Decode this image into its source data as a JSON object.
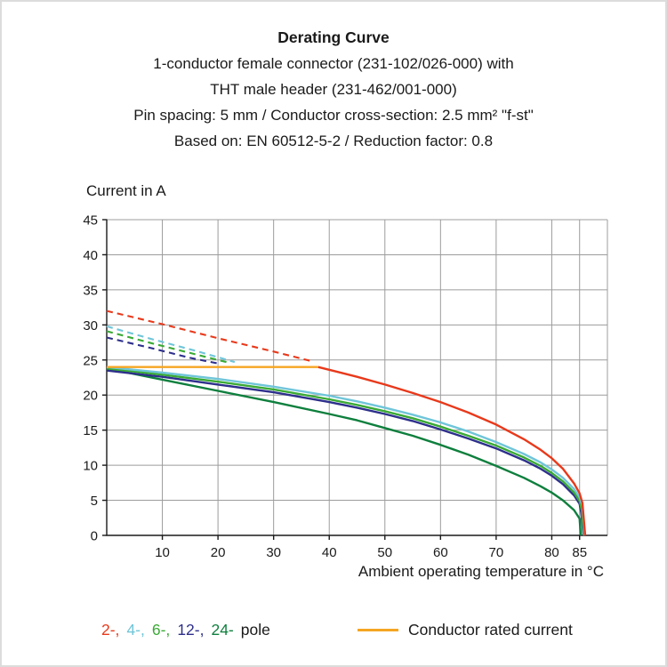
{
  "header": {
    "title": "Derating Curve",
    "subtitles": [
      "1-conductor female connector (231-102/026-000) with",
      "THT male header (231-462/001-000)",
      "Pin spacing: 5 mm / Conductor cross-section: 2.5 mm² \"f-st\"",
      "Based on: EN 60512-5-2 / Reduction factor: 0.8"
    ]
  },
  "chart_data": {
    "type": "line",
    "title": "Derating Curve",
    "xlabel": "Ambient operating temperature in °C",
    "ylabel": "Current in A",
    "xlim": [
      0,
      90
    ],
    "ylim": [
      0,
      45
    ],
    "x_ticks": [
      10,
      20,
      30,
      40,
      50,
      60,
      70,
      80,
      85
    ],
    "y_ticks": [
      0,
      5,
      10,
      15,
      20,
      25,
      30,
      35,
      40,
      45
    ],
    "grid": true,
    "grid_color": "#9c9c9c",
    "axis_color": "#1a1a1a",
    "series": [
      {
        "name": "2-pole without reduction factor",
        "color": "#e8391b",
        "style": "dashed",
        "width": 2.1,
        "points": [
          [
            0,
            32
          ],
          [
            10,
            30.1
          ],
          [
            20,
            28.1
          ],
          [
            30,
            26.2
          ],
          [
            37,
            24.8
          ]
        ]
      },
      {
        "name": "4-pole without reduction factor",
        "color": "#6fc5d9",
        "style": "dashed",
        "width": 2.1,
        "points": [
          [
            0,
            29.8
          ],
          [
            8,
            28
          ],
          [
            16,
            26.3
          ],
          [
            23,
            24.7
          ]
        ]
      },
      {
        "name": "6-pole without reduction factor",
        "color": "#3aaa35",
        "style": "dashed",
        "width": 2.1,
        "points": [
          [
            0,
            29.1
          ],
          [
            8,
            27.4
          ],
          [
            16,
            25.8
          ],
          [
            22,
            24.6
          ]
        ]
      },
      {
        "name": "12-pole without reduction factor",
        "color": "#2d2f8c",
        "style": "dashed",
        "width": 2.1,
        "points": [
          [
            0,
            28.2
          ],
          [
            8,
            26.7
          ],
          [
            15,
            25.3
          ],
          [
            20,
            24.5
          ]
        ]
      },
      {
        "name": "24-pole",
        "color": "#0e7f3d",
        "style": "solid",
        "width": 2.4,
        "points": [
          [
            0,
            23.8
          ],
          [
            10,
            22.2
          ],
          [
            20,
            20.6
          ],
          [
            30,
            19
          ],
          [
            40,
            17.3
          ],
          [
            45,
            16.4
          ],
          [
            50,
            15.3
          ],
          [
            55,
            14.2
          ],
          [
            60,
            12.9
          ],
          [
            65,
            11.5
          ],
          [
            70,
            9.9
          ],
          [
            75,
            8.2
          ],
          [
            78,
            7
          ],
          [
            80,
            6.1
          ],
          [
            82,
            5
          ],
          [
            84,
            3.6
          ],
          [
            85,
            2.4
          ],
          [
            85.2,
            0
          ]
        ]
      },
      {
        "name": "12-pole",
        "color": "#2d2f8c",
        "style": "solid",
        "width": 2.4,
        "points": [
          [
            0,
            23.5
          ],
          [
            10,
            22.6
          ],
          [
            20,
            21.5
          ],
          [
            30,
            20.4
          ],
          [
            40,
            19
          ],
          [
            45,
            18.2
          ],
          [
            50,
            17.3
          ],
          [
            55,
            16.3
          ],
          [
            60,
            15.1
          ],
          [
            65,
            13.8
          ],
          [
            70,
            12.4
          ],
          [
            75,
            10.7
          ],
          [
            78,
            9.5
          ],
          [
            80,
            8.5
          ],
          [
            82,
            7.3
          ],
          [
            84,
            5.7
          ],
          [
            85,
            4.5
          ],
          [
            85.3,
            3.2
          ],
          [
            85.7,
            0
          ]
        ]
      },
      {
        "name": "6-pole",
        "color": "#3aaa35",
        "style": "solid",
        "width": 2.4,
        "points": [
          [
            0,
            23.8
          ],
          [
            10,
            22.9
          ],
          [
            20,
            21.9
          ],
          [
            30,
            20.8
          ],
          [
            40,
            19.4
          ],
          [
            45,
            18.6
          ],
          [
            50,
            17.7
          ],
          [
            55,
            16.7
          ],
          [
            60,
            15.5
          ],
          [
            65,
            14.2
          ],
          [
            70,
            12.8
          ],
          [
            75,
            11.1
          ],
          [
            78,
            9.9
          ],
          [
            80,
            8.9
          ],
          [
            82,
            7.7
          ],
          [
            84,
            6.1
          ],
          [
            85,
            4.9
          ],
          [
            85.4,
            3.6
          ],
          [
            85.8,
            0
          ]
        ]
      },
      {
        "name": "4-pole",
        "color": "#6fc5d9",
        "style": "solid",
        "width": 2.4,
        "points": [
          [
            0,
            24
          ],
          [
            10,
            23.2
          ],
          [
            20,
            22.3
          ],
          [
            30,
            21.2
          ],
          [
            40,
            19.9
          ],
          [
            45,
            19.1
          ],
          [
            50,
            18.2
          ],
          [
            55,
            17.2
          ],
          [
            60,
            16.1
          ],
          [
            65,
            14.8
          ],
          [
            70,
            13.3
          ],
          [
            75,
            11.6
          ],
          [
            78,
            10.4
          ],
          [
            80,
            9.4
          ],
          [
            82,
            8.2
          ],
          [
            84,
            6.6
          ],
          [
            85,
            5.4
          ],
          [
            85.5,
            4.2
          ],
          [
            85.9,
            0
          ]
        ]
      },
      {
        "name": "2-pole",
        "color": "#e8391b",
        "style": "solid",
        "width": 2.4,
        "points": [
          [
            38,
            24
          ],
          [
            40,
            23.6
          ],
          [
            45,
            22.6
          ],
          [
            50,
            21.5
          ],
          [
            55,
            20.3
          ],
          [
            60,
            19
          ],
          [
            65,
            17.5
          ],
          [
            70,
            15.8
          ],
          [
            75,
            13.7
          ],
          [
            78,
            12.2
          ],
          [
            80,
            11
          ],
          [
            82,
            9.5
          ],
          [
            84,
            7.4
          ],
          [
            85,
            6
          ],
          [
            85.5,
            4.6
          ],
          [
            86,
            0
          ]
        ]
      },
      {
        "name": "Conductor rated current",
        "color": "#f5a623",
        "style": "solid",
        "width": 2.4,
        "points": [
          [
            0,
            24
          ],
          [
            38,
            24
          ]
        ]
      }
    ]
  },
  "legend": {
    "poles": [
      {
        "label": "2-,",
        "color": "#e8391b"
      },
      {
        "label": "4-,",
        "color": "#6fc5d9"
      },
      {
        "label": "6-,",
        "color": "#3aaa35"
      },
      {
        "label": "12-,",
        "color": "#2d2f8c"
      },
      {
        "label": "24-",
        "color": "#0e7f3d"
      }
    ],
    "pole_suffix": "pole",
    "rated": {
      "label": "Conductor rated current",
      "color": "#f5a623"
    }
  }
}
